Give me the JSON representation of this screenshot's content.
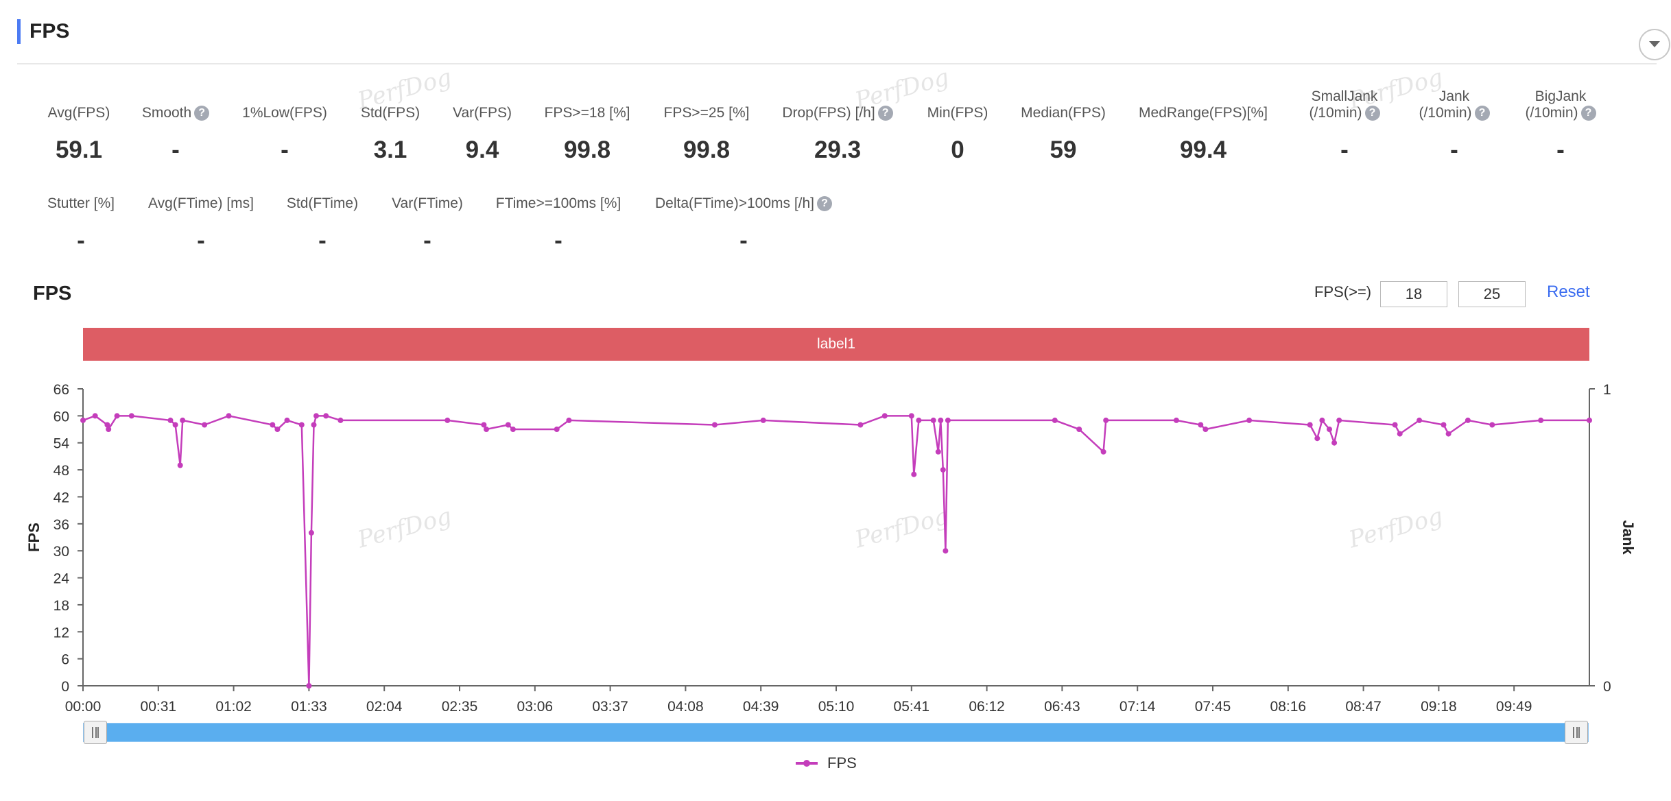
{
  "header": {
    "title": "FPS"
  },
  "metrics_row1": [
    {
      "label": "Avg(FPS)",
      "value": "59.1",
      "help": false
    },
    {
      "label": "Smooth",
      "value": "-",
      "help": true
    },
    {
      "label": "1%Low(FPS)",
      "value": "-",
      "help": false
    },
    {
      "label": "Std(FPS)",
      "value": "3.1",
      "help": false
    },
    {
      "label": "Var(FPS)",
      "value": "9.4",
      "help": false
    },
    {
      "label": "FPS>=18 [%]",
      "value": "99.8",
      "help": false
    },
    {
      "label": "FPS>=25 [%]",
      "value": "99.8",
      "help": false
    },
    {
      "label": "Drop(FPS) [/h]",
      "value": "29.3",
      "help": true
    },
    {
      "label": "Min(FPS)",
      "value": "0",
      "help": false
    },
    {
      "label": "Median(FPS)",
      "value": "59",
      "help": false
    },
    {
      "label": "MedRange(FPS)[%]",
      "value": "99.4",
      "help": false
    },
    {
      "label": "SmallJank",
      "label2": "(/10min)",
      "value": "-",
      "help": true
    },
    {
      "label": "Jank",
      "label2": "(/10min)",
      "value": "-",
      "help": true
    },
    {
      "label": "BigJank",
      "label2": "(/10min)",
      "value": "-",
      "help": true
    }
  ],
  "metrics_row2": [
    {
      "label": "Stutter [%]",
      "value": "-",
      "help": false
    },
    {
      "label": "Avg(FTime) [ms]",
      "value": "-",
      "help": false
    },
    {
      "label": "Std(FTime)",
      "value": "-",
      "help": false
    },
    {
      "label": "Var(FTime)",
      "value": "-",
      "help": false
    },
    {
      "label": "FTime>=100ms [%]",
      "value": "-",
      "help": false
    },
    {
      "label": "Delta(FTime)>100ms [/h]",
      "value": "-",
      "help": true
    }
  ],
  "help_icon_glyph": "?",
  "watermark_text": "PerfDog",
  "chart_panel": {
    "title": "FPS",
    "threshold_label": "FPS(>=)",
    "threshold_1": "18",
    "threshold_2": "25",
    "reset_label": "Reset",
    "label_band": "label1"
  },
  "chart_data": {
    "type": "line",
    "title": "FPS",
    "ylabel": "FPS",
    "y2label": "Jank",
    "ylim": [
      0,
      66
    ],
    "y2lim": [
      0,
      1
    ],
    "y_ticks": [
      0,
      6,
      12,
      18,
      24,
      30,
      36,
      42,
      48,
      54,
      60,
      66
    ],
    "y2_ticks": [
      0,
      1
    ],
    "x_ticks": [
      "00:00",
      "00:31",
      "01:02",
      "01:33",
      "02:04",
      "02:35",
      "03:06",
      "03:37",
      "04:08",
      "04:39",
      "05:10",
      "05:41",
      "06:12",
      "06:43",
      "07:14",
      "07:45",
      "08:16",
      "08:47",
      "09:18",
      "09:49"
    ],
    "x_range_seconds": [
      0,
      620
    ],
    "series": [
      {
        "name": "FPS",
        "color": "#c43dbb",
        "baseline": 60,
        "points": [
          [
            0,
            59
          ],
          [
            5,
            60
          ],
          [
            10,
            58
          ],
          [
            10.5,
            57
          ],
          [
            14,
            60
          ],
          [
            20,
            60
          ],
          [
            36,
            59
          ],
          [
            38,
            58
          ],
          [
            40,
            49
          ],
          [
            41,
            59
          ],
          [
            50,
            58
          ],
          [
            60,
            60
          ],
          [
            78,
            58
          ],
          [
            80,
            57
          ],
          [
            84,
            59
          ],
          [
            90,
            58
          ],
          [
            93,
            0
          ],
          [
            94,
            34
          ],
          [
            95,
            58
          ],
          [
            96,
            60
          ],
          [
            100,
            60
          ],
          [
            106,
            59
          ],
          [
            150,
            59
          ],
          [
            165,
            58
          ],
          [
            166,
            57
          ],
          [
            175,
            58
          ],
          [
            177,
            57
          ],
          [
            195,
            57
          ],
          [
            200,
            59
          ],
          [
            260,
            58
          ],
          [
            280,
            59
          ],
          [
            320,
            58
          ],
          [
            330,
            60
          ],
          [
            341,
            60
          ],
          [
            342,
            47
          ],
          [
            344,
            59
          ],
          [
            350,
            59
          ],
          [
            352,
            52
          ],
          [
            353,
            59
          ],
          [
            354,
            48
          ],
          [
            355,
            30
          ],
          [
            356,
            59
          ],
          [
            400,
            59
          ],
          [
            410,
            57
          ],
          [
            420,
            52
          ],
          [
            421,
            59
          ],
          [
            450,
            59
          ],
          [
            460,
            58
          ],
          [
            462,
            57
          ],
          [
            480,
            59
          ],
          [
            505,
            58
          ],
          [
            508,
            55
          ],
          [
            510,
            59
          ],
          [
            513,
            57
          ],
          [
            515,
            54
          ],
          [
            517,
            59
          ],
          [
            540,
            58
          ],
          [
            542,
            56
          ],
          [
            550,
            59
          ],
          [
            560,
            58
          ],
          [
            562,
            56
          ],
          [
            570,
            59
          ],
          [
            580,
            58
          ],
          [
            600,
            59
          ],
          [
            620,
            59
          ]
        ]
      }
    ],
    "legend": "bottom-center"
  }
}
